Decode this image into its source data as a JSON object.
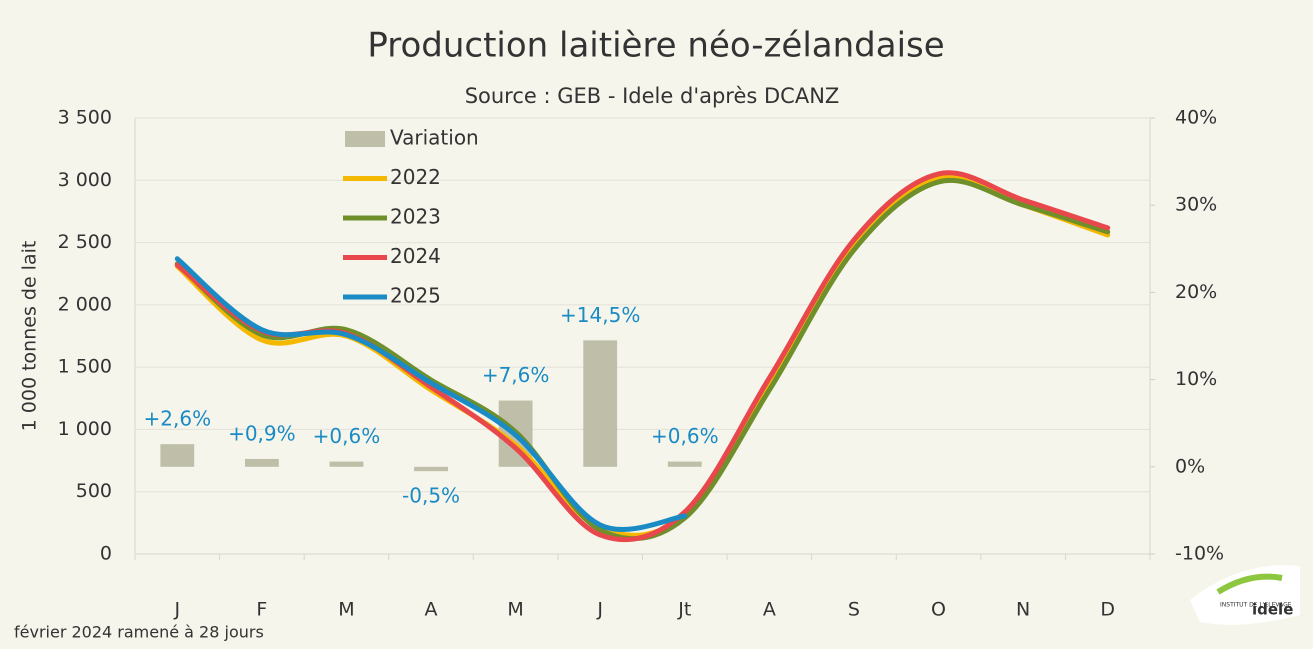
{
  "chart_data": {
    "type": "line",
    "title": "Production laitière néo-zélandaise",
    "subtitle": "Source : GEB - Idele d'après DCANZ",
    "ylabel": "1 000 tonnes de lait",
    "footnote": "février 2024 ramené à 28 jours",
    "logo": {
      "top": "INSTITUT DE L'ELEVAGE",
      "name": "idele"
    },
    "categories": [
      "J",
      "F",
      "M",
      "A",
      "M",
      "J",
      "Jt",
      "A",
      "S",
      "O",
      "N",
      "D"
    ],
    "ylim": [
      0,
      3500
    ],
    "yticks": [
      0,
      500,
      {
        "value": 1000,
        "label": "1 000"
      },
      {
        "value": 1500,
        "label": "1 500"
      },
      {
        "value": 2000,
        "label": "2 000"
      },
      {
        "value": 2500,
        "label": "2 500"
      },
      {
        "value": 3000,
        "label": "3 000"
      },
      {
        "value": 3500,
        "label": "3 500"
      }
    ],
    "y2lim": [
      -10,
      40
    ],
    "y2ticks": [
      {
        "value": -10,
        "label": "-10%"
      },
      {
        "value": 0,
        "label": "0%"
      },
      {
        "value": 10,
        "label": "10%"
      },
      {
        "value": 20,
        "label": "20%"
      },
      {
        "value": 30,
        "label": "30%"
      },
      {
        "value": 40,
        "label": "40%"
      }
    ],
    "grid": true,
    "series": [
      {
        "name": "Variation",
        "type": "bar",
        "axis": "y2",
        "color": "#bfbfa9",
        "values": [
          2.6,
          0.9,
          0.6,
          -0.5,
          7.6,
          14.5,
          0.6,
          null,
          null,
          null,
          null,
          null
        ],
        "value_labels": [
          "+2,6%",
          "+0,9%",
          "+0,6%",
          "-0,5%",
          "+7,6%",
          "+14,5%",
          "+0,6%",
          null,
          null,
          null,
          null,
          null
        ],
        "label_color": "#1a8bc4"
      },
      {
        "name": "2022",
        "type": "line",
        "color": "#f5b800",
        "values": [
          2310,
          1718,
          1750,
          1317,
          875,
          209,
          313,
          1357,
          2481,
          3019,
          2802,
          2561
        ]
      },
      {
        "name": "2023",
        "type": "line",
        "color": "#6e8f2a",
        "values": [
          2330,
          1760,
          1800,
          1397,
          980,
          193,
          289,
          1317,
          2441,
          2987,
          2802,
          2586
        ]
      },
      {
        "name": "2024",
        "type": "line",
        "color": "#e8474c",
        "values": [
          2320,
          1790,
          1770,
          1340,
          850,
          153,
          337,
          1413,
          2521,
          3051,
          2842,
          2618
        ]
      },
      {
        "name": "2025",
        "type": "line",
        "color": "#1a8bc4",
        "values": [
          2370,
          1800,
          1760,
          1373,
          955,
          233,
          305,
          null,
          null,
          null,
          null,
          null
        ]
      }
    ]
  }
}
